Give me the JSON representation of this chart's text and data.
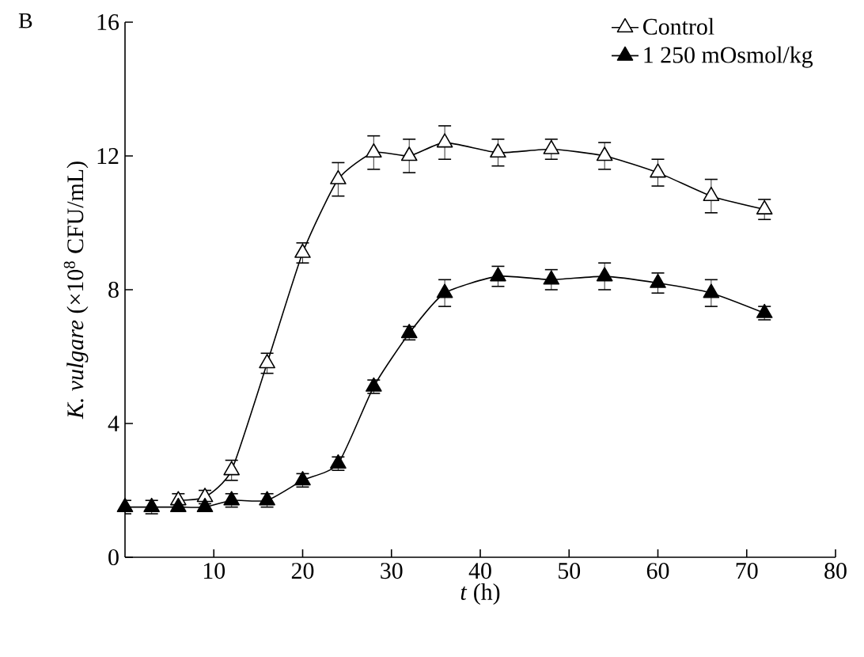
{
  "chart_data": {
    "type": "line",
    "title": "B",
    "xlabel": "*t* (h)",
    "ylabel": "*K. vulgare* (×10$^{8}$ CFU/mL)",
    "x": [
      0,
      3,
      6,
      9,
      12,
      16,
      20,
      24,
      28,
      32,
      36,
      42,
      48,
      54,
      60,
      66,
      72
    ],
    "series": [
      {
        "name": "Control",
        "color": "#ffffff",
        "values": [
          null,
          null,
          1.7,
          1.8,
          2.6,
          5.8,
          9.1,
          11.3,
          12.1,
          12.0,
          12.4,
          12.1,
          12.2,
          12.0,
          11.5,
          10.8,
          10.4
        ],
        "errors": [
          null,
          null,
          0.2,
          0.2,
          0.3,
          0.3,
          0.3,
          0.5,
          0.5,
          0.5,
          0.5,
          0.4,
          0.3,
          0.4,
          0.4,
          0.5,
          0.3
        ]
      },
      {
        "name": "1 250 mOsmol/kg",
        "color": "#000000",
        "values": [
          1.5,
          1.5,
          1.5,
          1.5,
          1.7,
          1.7,
          2.3,
          2.8,
          5.1,
          6.7,
          7.9,
          8.4,
          8.3,
          8.4,
          8.2,
          7.9,
          7.3
        ],
        "errors": [
          0.2,
          0.2,
          null,
          null,
          0.2,
          0.2,
          0.2,
          0.2,
          0.2,
          0.2,
          0.4,
          0.3,
          0.3,
          0.4,
          0.3,
          0.4,
          0.2
        ]
      }
    ],
    "xlim": [
      0,
      80
    ],
    "xticks": [
      10,
      20,
      30,
      40,
      50,
      60,
      70,
      80
    ],
    "ylim": [
      0,
      16
    ],
    "yticks": [
      0,
      4,
      8,
      12,
      16
    ],
    "grid": false,
    "legend": "top right",
    "marker": "triangle",
    "line_style": "solid"
  }
}
